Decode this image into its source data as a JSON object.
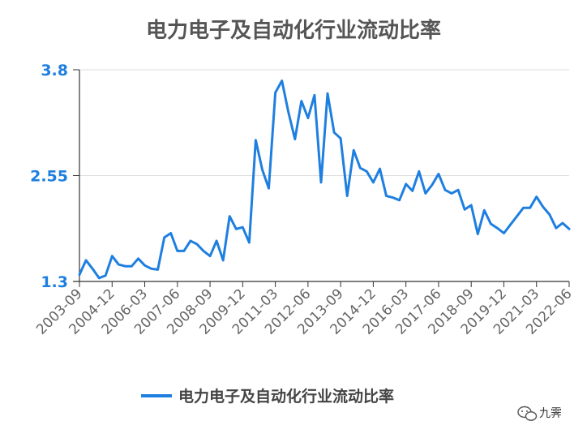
{
  "chart_data": {
    "type": "line",
    "title": "电力电子及自动化行业流动比率",
    "xlabel": "",
    "ylabel": "",
    "ylim": [
      1.3,
      3.8
    ],
    "yticks": [
      "1.3",
      "2.55",
      "3.8"
    ],
    "grid": true,
    "legend_position": "bottom",
    "x_tick_labels": [
      "2003-09",
      "2004-12",
      "2006-03",
      "2007-06",
      "2008-09",
      "2009-12",
      "2011-03",
      "2012-06",
      "2013-09",
      "2014-12",
      "2016-03",
      "2017-06",
      "2018-09",
      "2019-12",
      "2021-03",
      "2022-06"
    ],
    "x": [
      "2003-09",
      "2003-12",
      "2004-03",
      "2004-06",
      "2004-09",
      "2004-12",
      "2005-03",
      "2005-06",
      "2005-09",
      "2005-12",
      "2006-03",
      "2006-06",
      "2006-09",
      "2006-12",
      "2007-03",
      "2007-06",
      "2007-09",
      "2007-12",
      "2008-03",
      "2008-06",
      "2008-09",
      "2008-12",
      "2009-03",
      "2009-06",
      "2009-09",
      "2009-12",
      "2010-03",
      "2010-06",
      "2010-09",
      "2010-12",
      "2011-03",
      "2011-06",
      "2011-09",
      "2011-12",
      "2012-03",
      "2012-06",
      "2012-09",
      "2012-12",
      "2013-03",
      "2013-06",
      "2013-09",
      "2013-12",
      "2014-03",
      "2014-06",
      "2014-09",
      "2014-12",
      "2015-03",
      "2015-06",
      "2015-09",
      "2015-12",
      "2016-03",
      "2016-06",
      "2016-09",
      "2016-12",
      "2017-03",
      "2017-06",
      "2017-09",
      "2017-12",
      "2018-03",
      "2018-06",
      "2018-09",
      "2018-12",
      "2019-03",
      "2019-06",
      "2019-09",
      "2019-12",
      "2020-03",
      "2020-06",
      "2020-09",
      "2020-12",
      "2021-03",
      "2021-06",
      "2021-09",
      "2021-12",
      "2022-03",
      "2022-06"
    ],
    "series": [
      {
        "name": "电力电子及自动化行业流动比率",
        "color": "#1e7fe0",
        "values": [
          1.38,
          1.55,
          1.45,
          1.34,
          1.37,
          1.6,
          1.5,
          1.48,
          1.48,
          1.57,
          1.49,
          1.45,
          1.44,
          1.82,
          1.87,
          1.66,
          1.66,
          1.78,
          1.74,
          1.66,
          1.6,
          1.78,
          1.55,
          2.07,
          1.92,
          1.94,
          1.76,
          2.97,
          2.62,
          2.4,
          3.53,
          3.67,
          3.3,
          2.98,
          3.43,
          3.23,
          3.5,
          2.47,
          3.52,
          3.06,
          2.99,
          2.31,
          2.85,
          2.64,
          2.6,
          2.47,
          2.63,
          2.31,
          2.29,
          2.26,
          2.45,
          2.37,
          2.6,
          2.34,
          2.44,
          2.57,
          2.38,
          2.34,
          2.38,
          2.15,
          2.2,
          1.86,
          2.14,
          1.98,
          1.93,
          1.87,
          1.97,
          2.07,
          2.17,
          2.17,
          2.3,
          2.18,
          2.09,
          1.93,
          1.99,
          1.92
        ]
      }
    ]
  },
  "watermark": {
    "icon": "wechat-icon",
    "text": "九霁"
  }
}
